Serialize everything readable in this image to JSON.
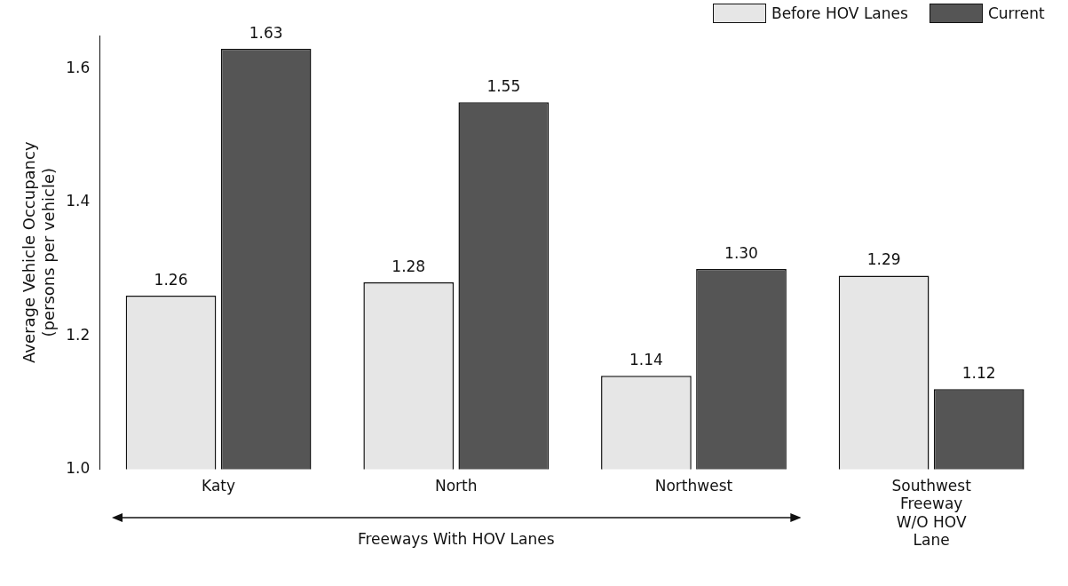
{
  "chart_data": {
    "type": "bar",
    "ylabel": "Average Vehicle Occupancy\n(persons per vehicle)",
    "categories": [
      "Katy",
      "North",
      "Northwest",
      "Southwest\nFreeway\nW/O HOV\nLane"
    ],
    "series": [
      {
        "name": "Before HOV Lanes",
        "color": "#e6e6e6",
        "values": [
          1.26,
          1.28,
          1.14,
          1.29
        ],
        "value_labels": [
          "1.26",
          "1.28",
          "1.14",
          "1.29"
        ]
      },
      {
        "name": "Current",
        "color": "#555555",
        "values": [
          1.63,
          1.55,
          1.3,
          1.12
        ],
        "value_labels": [
          "1.63",
          "1.55",
          "1.30",
          "1.12"
        ]
      }
    ],
    "ylim": [
      1.0,
      1.65
    ],
    "yticks": [
      {
        "value": 1.0,
        "label": "1.0"
      },
      {
        "value": 1.2,
        "label": "1.2"
      },
      {
        "value": 1.4,
        "label": "1.4"
      },
      {
        "value": 1.6,
        "label": "1.6"
      }
    ],
    "grid": false,
    "legend": "top right",
    "annotations": [
      "Freeways With HOV Lanes"
    ]
  }
}
